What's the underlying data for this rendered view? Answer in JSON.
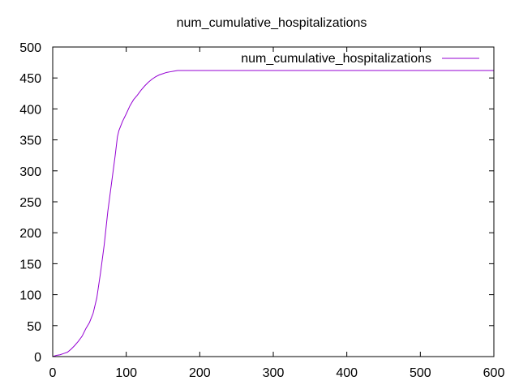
{
  "chart_data": {
    "type": "line",
    "title": "num_cumulative_hospitalizations",
    "xlabel": "",
    "ylabel": "",
    "xlim": [
      0,
      600
    ],
    "ylim": [
      0,
      500
    ],
    "xticks": [
      0,
      100,
      200,
      300,
      400,
      500,
      600
    ],
    "yticks": [
      0,
      50,
      100,
      150,
      200,
      250,
      300,
      350,
      400,
      450,
      500
    ],
    "grid": false,
    "legend_position": "top-right",
    "series": [
      {
        "name": "num_cumulative_hospitalizations",
        "color": "#9400d3",
        "x": [
          0,
          5,
          10,
          15,
          20,
          25,
          30,
          35,
          40,
          45,
          50,
          55,
          60,
          65,
          70,
          75,
          80,
          85,
          88,
          90,
          95,
          100,
          105,
          110,
          115,
          120,
          125,
          130,
          135,
          140,
          145,
          150,
          155,
          160,
          165,
          170,
          200,
          300,
          400,
          500,
          600
        ],
        "y": [
          0,
          2,
          3,
          5,
          7,
          12,
          18,
          25,
          33,
          45,
          55,
          70,
          95,
          135,
          180,
          235,
          280,
          325,
          355,
          365,
          380,
          392,
          405,
          415,
          422,
          430,
          437,
          443,
          448,
          452,
          455,
          457,
          459,
          460,
          461,
          462,
          462,
          462,
          462,
          462,
          462
        ]
      }
    ]
  }
}
